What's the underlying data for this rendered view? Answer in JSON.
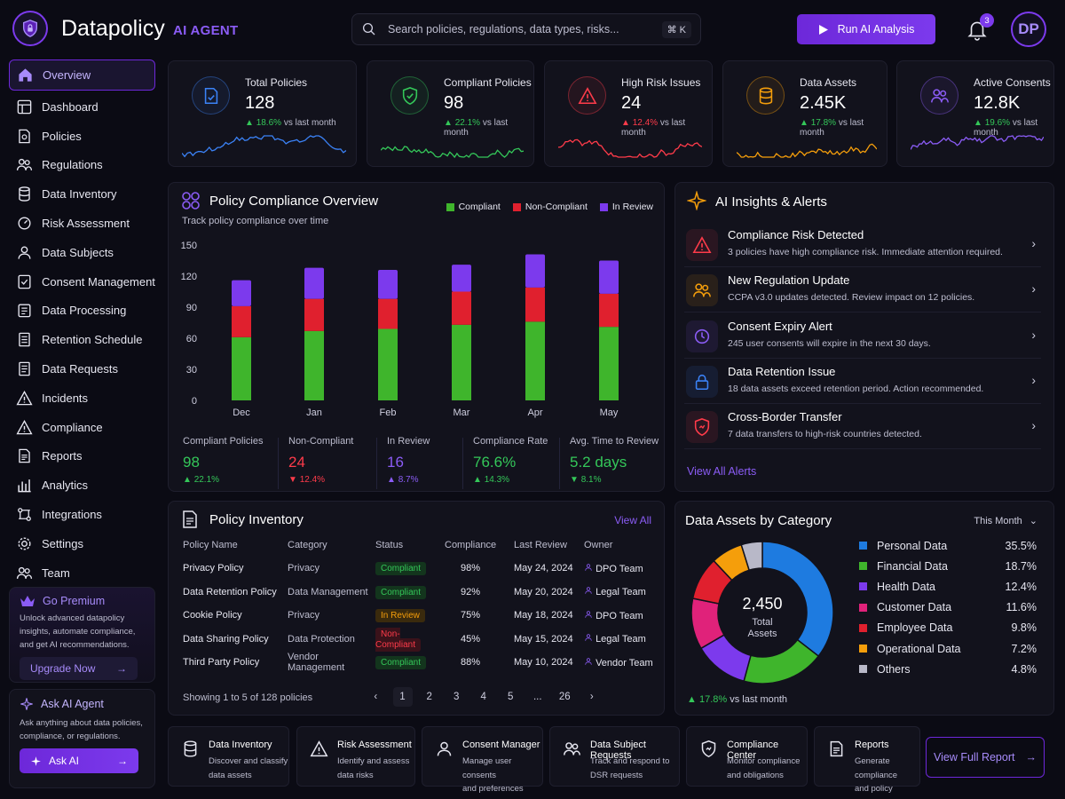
{
  "app": {
    "brand": "Datapolicy",
    "brand_sub": "AI AGENT",
    "avatar_initials": "DP"
  },
  "search": {
    "placeholder": "Search policies, regulations, data types, risks...",
    "shortcut": "⌘ K"
  },
  "header": {
    "run_label": "Run AI Analysis",
    "notification_count": "3"
  },
  "sidebar": {
    "items": [
      {
        "label": "Overview",
        "icon": "home-icon"
      },
      {
        "label": "Dashboard",
        "icon": "dashboard-icon"
      },
      {
        "label": "Policies",
        "icon": "policy-icon"
      },
      {
        "label": "Regulations",
        "icon": "users-icon"
      },
      {
        "label": "Data Inventory",
        "icon": "database-icon"
      },
      {
        "label": "Risk Assessment",
        "icon": "risk-icon"
      },
      {
        "label": "Data Subjects",
        "icon": "user-icon"
      },
      {
        "label": "Consent Management",
        "icon": "consent-icon"
      },
      {
        "label": "Data Processing",
        "icon": "processing-icon"
      },
      {
        "label": "Retention Schedule",
        "icon": "schedule-icon"
      },
      {
        "label": "Data Requests",
        "icon": "requests-icon"
      },
      {
        "label": "Incidents",
        "icon": "warning-icon"
      },
      {
        "label": "Compliance",
        "icon": "compliance-icon"
      },
      {
        "label": "Reports",
        "icon": "report-icon"
      },
      {
        "label": "Analytics",
        "icon": "analytics-icon"
      },
      {
        "label": "Integrations",
        "icon": "integrations-icon"
      },
      {
        "label": "Settings",
        "icon": "gear-icon"
      },
      {
        "label": "Team",
        "icon": "team-icon"
      }
    ],
    "premium": {
      "title": "Go Premium",
      "text": "Unlock advanced datapolicy insights, automate compliance, and get AI recommendations.",
      "button": "Upgrade Now"
    },
    "ask_ai": {
      "title": "Ask AI Agent",
      "text": "Ask anything about data policies, compliance, or regulations.",
      "button": "Ask AI"
    }
  },
  "stats": [
    {
      "label": "Total Policies",
      "value": "128",
      "change": "18.6%",
      "suffix": "vs last month",
      "direction": "up",
      "color": "#3b82f6"
    },
    {
      "label": "Compliant Policies",
      "value": "98",
      "change": "22.1%",
      "suffix": "vs last month",
      "direction": "up",
      "color": "#34c759"
    },
    {
      "label": "High Risk Issues",
      "value": "24",
      "change": "12.4%",
      "suffix": "vs last month",
      "direction": "up",
      "color": "#ff3b4a"
    },
    {
      "label": "Data Assets",
      "value": "2.45K",
      "change": "17.8%",
      "suffix": "vs last month",
      "direction": "up",
      "color": "#f59e0b"
    },
    {
      "label": "Active Consents",
      "value": "12.8K",
      "change": "19.6%",
      "suffix": "vs last month",
      "direction": "up",
      "color": "#8b5cf6"
    }
  ],
  "compliance": {
    "title": "Policy Compliance Overview",
    "subtitle": "Track policy compliance over time",
    "kpis": [
      {
        "label": "Compliant Policies",
        "value": "98",
        "change": "22.1%",
        "dir": "up",
        "color": "#34c759"
      },
      {
        "label": "Non-Compliant",
        "value": "24",
        "change": "12.4%",
        "dir": "down",
        "color": "#ff3b4a"
      },
      {
        "label": "In Review",
        "value": "16",
        "change": "8.7%",
        "dir": "up",
        "color": "#8b5cf6"
      },
      {
        "label": "Compliance Rate",
        "value": "76.6%",
        "change": "14.3%",
        "dir": "up",
        "color": "#34c759"
      },
      {
        "label": "Avg. Time to Review",
        "value": "5.2 days",
        "change": "8.1%",
        "dir": "down",
        "color": "#34c759"
      }
    ]
  },
  "chart_data": {
    "type": "bar",
    "stacked": true,
    "categories": [
      "Dec",
      "Jan",
      "Feb",
      "Mar",
      "Apr",
      "May"
    ],
    "series": [
      {
        "name": "Compliant",
        "color": "#3fb52c",
        "values": [
          61,
          67,
          69,
          73,
          76,
          71
        ]
      },
      {
        "name": "Non-Compliant",
        "color": "#e0202e",
        "values": [
          30,
          31,
          29,
          32,
          33,
          32
        ]
      },
      {
        "name": "In Review",
        "color": "#7c3aed",
        "values": [
          25,
          30,
          28,
          26,
          32,
          32
        ]
      }
    ],
    "yticks": [
      0,
      30,
      60,
      90,
      120,
      150
    ],
    "ylim": [
      0,
      150
    ],
    "legend": "top-right",
    "grid": false
  },
  "alerts": {
    "title": "AI Insights & Alerts",
    "items": [
      {
        "title": "Compliance Risk Detected",
        "desc": "3 policies have high compliance risk. Immediate attention required.",
        "icon": "warning-icon",
        "color": "#ff3b4a"
      },
      {
        "title": "New Regulation Update",
        "desc": "CCPA v3.0 updates detected. Review impact on 12 policies.",
        "icon": "users-icon",
        "color": "#f59e0b"
      },
      {
        "title": "Consent Expiry Alert",
        "desc": "245 user consents will expire in the next 30 days.",
        "icon": "clock-icon",
        "color": "#8b5cf6"
      },
      {
        "title": "Data Retention Issue",
        "desc": "18 data assets exceed retention period. Action recommended.",
        "icon": "lock-icon",
        "color": "#3b82f6"
      },
      {
        "title": "Cross-Border Transfer",
        "desc": "7 data transfers to high-risk countries detected.",
        "icon": "shield-icon",
        "color": "#ff3b4a"
      }
    ],
    "view_all": "View All Alerts"
  },
  "inventory": {
    "title": "Policy Inventory",
    "view_all": "View All",
    "columns": [
      "Policy Name",
      "Category",
      "Status",
      "Compliance",
      "Last Review",
      "Owner"
    ],
    "rows": [
      {
        "name": "Privacy Policy",
        "category": "Privacy",
        "status": "Compliant",
        "status_type": "compliant",
        "compliance": "98%",
        "review": "May 24, 2024",
        "owner": "DPO Team"
      },
      {
        "name": "Data Retention Policy",
        "category": "Data Management",
        "status": "Compliant",
        "status_type": "compliant",
        "compliance": "92%",
        "review": "May 20, 2024",
        "owner": "Legal Team"
      },
      {
        "name": "Cookie Policy",
        "category": "Privacy",
        "status": "In Review",
        "status_type": "review",
        "compliance": "75%",
        "review": "May 18, 2024",
        "owner": "DPO Team"
      },
      {
        "name": "Data Sharing Policy",
        "category": "Data Protection",
        "status": "Non-Compliant",
        "status_type": "noncompliant",
        "compliance": "45%",
        "review": "May 15, 2024",
        "owner": "Legal Team"
      },
      {
        "name": "Third Party Policy",
        "category": "Vendor Management",
        "status": "Compliant",
        "status_type": "compliant",
        "compliance": "88%",
        "review": "May 10, 2024",
        "owner": "Vendor Team"
      }
    ],
    "showing": "Showing 1 to 5 of 128 policies",
    "pages": [
      "‹",
      "1",
      "2",
      "3",
      "4",
      "5",
      "...",
      "26",
      "›"
    ]
  },
  "assets": {
    "title": "Data Assets by Category",
    "period": "This Month",
    "total": "2,450",
    "total_label_1": "Total",
    "total_label_2": "Assets",
    "change": "17.8%",
    "change_suffix": "vs last month",
    "categories": [
      {
        "name": "Personal Data",
        "pct": "35.5%",
        "value": 35.5,
        "color": "#1e7be0"
      },
      {
        "name": "Financial Data",
        "pct": "18.7%",
        "value": 18.7,
        "color": "#3fb52c"
      },
      {
        "name": "Health Data",
        "pct": "12.4%",
        "value": 12.4,
        "color": "#7c3aed"
      },
      {
        "name": "Customer Data",
        "pct": "11.6%",
        "value": 11.6,
        "color": "#e0227a"
      },
      {
        "name": "Employee Data",
        "pct": "9.8%",
        "value": 9.8,
        "color": "#e0202e"
      },
      {
        "name": "Operational Data",
        "pct": "7.2%",
        "value": 7.2,
        "color": "#f59e0b"
      },
      {
        "name": "Others",
        "pct": "4.8%",
        "value": 4.8,
        "color": "#b8b8c8"
      }
    ]
  },
  "quick": [
    {
      "title": "Data Inventory",
      "line1": "Discover and classify",
      "line2": "data assets",
      "icon": "database-icon"
    },
    {
      "title": "Risk Assessment",
      "line1": "Identify and assess",
      "line2": "data risks",
      "icon": "warning-icon"
    },
    {
      "title": "Consent Manager",
      "line1": "Manage user consents",
      "line2": "and preferences",
      "icon": "user-icon"
    },
    {
      "title": "Data Subject Requests",
      "line1": "Track and respond to",
      "line2": "DSR requests",
      "icon": "users-icon"
    },
    {
      "title": "Compliance Center",
      "line1": "Monitor compliance",
      "line2": "and obligations",
      "icon": "shield-icon"
    },
    {
      "title": "Reports",
      "line1": "Generate compliance",
      "line2": "and policy reports",
      "icon": "report-icon"
    }
  ],
  "footer": {
    "full_report": "View Full Report"
  }
}
